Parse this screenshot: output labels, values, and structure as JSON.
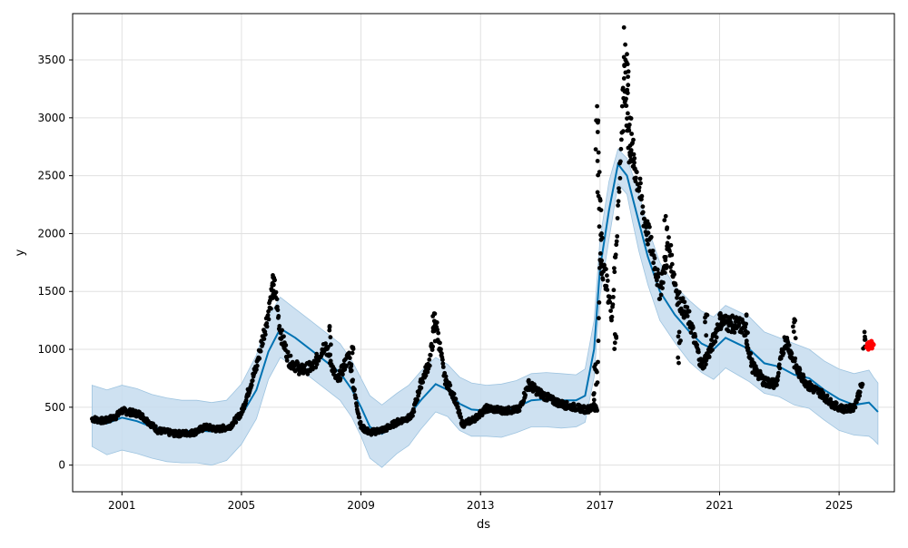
{
  "chart_data": {
    "type": "scatter",
    "title": "",
    "xlabel": "ds",
    "ylabel": "y",
    "xlim": [
      1999.35,
      2026.85
    ],
    "ylim": [
      -230,
      3900
    ],
    "grid": true,
    "x_ticks": [
      2001,
      2005,
      2009,
      2013,
      2017,
      2021,
      2025
    ],
    "x_tick_labels": [
      "2001",
      "2005",
      "2009",
      "2013",
      "2017",
      "2021",
      "2025"
    ],
    "y_ticks": [
      0,
      500,
      1000,
      1500,
      2000,
      2500,
      3000,
      3500
    ],
    "y_tick_labels": [
      "0",
      "500",
      "1000",
      "1500",
      "2000",
      "2500",
      "3000",
      "3500"
    ],
    "colors": {
      "observed": "#000000",
      "forecast_line": "#0072B2",
      "uncertainty_band": "#c6dcee",
      "uncertainty_edge": "#9ec4e0",
      "recent_points": "#ff0000",
      "grid": "#e0e0e0"
    },
    "series": [
      {
        "kind": "forecast",
        "x": [
          2000.0,
          2000.5,
          2001.0,
          2001.5,
          2002.0,
          2002.5,
          2003.0,
          2003.5,
          2004.0,
          2004.5,
          2005.0,
          2005.5,
          2005.9,
          2006.3,
          2006.8,
          2007.3,
          2007.8,
          2008.3,
          2008.7,
          2009.0,
          2009.3,
          2009.7,
          2010.2,
          2010.6,
          2011.0,
          2011.5,
          2011.9,
          2012.3,
          2012.7,
          2013.2,
          2013.7,
          2014.2,
          2014.7,
          2015.2,
          2015.7,
          2016.2,
          2016.5,
          2016.8,
          2017.0,
          2017.3,
          2017.6,
          2017.9,
          2018.1,
          2018.3,
          2018.6,
          2019.0,
          2019.5,
          2020.0,
          2020.4,
          2020.8,
          2021.2,
          2021.6,
          2022.0,
          2022.5,
          2023.0,
          2023.5,
          2024.0,
          2024.5,
          2025.0,
          2025.5,
          2026.0,
          2026.15,
          2026.3
        ],
        "y": [
          400,
          360,
          410,
          380,
          330,
          300,
          290,
          300,
          290,
          300,
          430,
          650,
          980,
          1180,
          1100,
          1000,
          900,
          800,
          650,
          500,
          330,
          270,
          360,
          430,
          560,
          700,
          650,
          530,
          480,
          470,
          470,
          500,
          560,
          570,
          560,
          560,
          600,
          1000,
          1700,
          2200,
          2600,
          2500,
          2300,
          2100,
          1800,
          1500,
          1300,
          1150,
          1050,
          1000,
          1100,
          1050,
          1000,
          880,
          850,
          780,
          750,
          650,
          570,
          520,
          540,
          500,
          460
        ]
      },
      {
        "kind": "uncertainty",
        "x": [
          2000.0,
          2000.5,
          2001.0,
          2001.5,
          2002.0,
          2002.5,
          2003.0,
          2003.5,
          2004.0,
          2004.5,
          2005.0,
          2005.5,
          2005.9,
          2006.3,
          2006.8,
          2007.3,
          2007.8,
          2008.3,
          2008.7,
          2009.0,
          2009.3,
          2009.7,
          2010.2,
          2010.6,
          2011.0,
          2011.5,
          2011.9,
          2012.3,
          2012.7,
          2013.2,
          2013.7,
          2014.2,
          2014.7,
          2015.2,
          2015.7,
          2016.2,
          2016.5,
          2016.8,
          2017.0,
          2017.3,
          2017.6,
          2017.9,
          2018.1,
          2018.3,
          2018.6,
          2019.0,
          2019.5,
          2020.0,
          2020.4,
          2020.8,
          2021.2,
          2021.6,
          2022.0,
          2022.5,
          2023.0,
          2023.5,
          2024.0,
          2024.5,
          2025.0,
          2025.5,
          2026.0,
          2026.15,
          2026.3
        ],
        "upper": [
          690,
          650,
          690,
          660,
          610,
          580,
          560,
          560,
          540,
          560,
          700,
          950,
          1280,
          1450,
          1350,
          1250,
          1150,
          1050,
          900,
          750,
          600,
          520,
          620,
          690,
          810,
          930,
          870,
          760,
          710,
          690,
          700,
          730,
          790,
          800,
          790,
          780,
          830,
          1250,
          1950,
          2450,
          2730,
          2650,
          2500,
          2350,
          2050,
          1750,
          1550,
          1420,
          1330,
          1280,
          1380,
          1330,
          1280,
          1150,
          1100,
          1050,
          1000,
          900,
          830,
          790,
          820,
          760,
          710
        ],
        "lower": [
          160,
          90,
          130,
          100,
          60,
          30,
          20,
          20,
          0,
          40,
          180,
          400,
          740,
          930,
          850,
          760,
          660,
          560,
          410,
          250,
          60,
          -20,
          100,
          170,
          310,
          460,
          420,
          300,
          250,
          250,
          240,
          280,
          330,
          330,
          320,
          330,
          370,
          760,
          1460,
          1950,
          2430,
          2340,
          2090,
          1850,
          1560,
          1250,
          1060,
          890,
          800,
          740,
          840,
          780,
          720,
          620,
          590,
          520,
          490,
          390,
          300,
          260,
          250,
          220,
          180
        ]
      },
      {
        "kind": "observed",
        "anchors": [
          [
            2000.0,
            400
          ],
          [
            2000.4,
            380
          ],
          [
            2000.8,
            420
          ],
          [
            2001.0,
            470
          ],
          [
            2001.6,
            440
          ],
          [
            2002.2,
            300
          ],
          [
            2002.8,
            270
          ],
          [
            2003.4,
            280
          ],
          [
            2003.8,
            330
          ],
          [
            2004.2,
            310
          ],
          [
            2004.6,
            330
          ],
          [
            2005.0,
            450
          ],
          [
            2005.5,
            850
          ],
          [
            2005.8,
            1200
          ],
          [
            2006.1,
            1560
          ],
          [
            2006.3,
            1150
          ],
          [
            2006.6,
            900
          ],
          [
            2007.0,
            820
          ],
          [
            2007.4,
            850
          ],
          [
            2007.8,
            1050
          ],
          [
            2008.2,
            720
          ],
          [
            2008.6,
            950
          ],
          [
            2008.8,
            600
          ],
          [
            2009.0,
            330
          ],
          [
            2009.3,
            280
          ],
          [
            2009.8,
            310
          ],
          [
            2010.2,
            370
          ],
          [
            2010.7,
            420
          ],
          [
            2011.0,
            700
          ],
          [
            2011.3,
            900
          ],
          [
            2011.5,
            1250
          ],
          [
            2011.8,
            750
          ],
          [
            2012.1,
            600
          ],
          [
            2012.4,
            350
          ],
          [
            2012.8,
            400
          ],
          [
            2013.2,
            490
          ],
          [
            2013.8,
            470
          ],
          [
            2014.3,
            480
          ],
          [
            2014.6,
            700
          ],
          [
            2015.0,
            620
          ],
          [
            2015.4,
            560
          ],
          [
            2015.8,
            520
          ],
          [
            2016.5,
            480
          ],
          [
            2016.9,
            500
          ],
          [
            2017.0,
            1800
          ],
          [
            2017.2,
            1600
          ],
          [
            2017.4,
            1300
          ],
          [
            2017.6,
            2200
          ],
          [
            2017.8,
            3300
          ],
          [
            2018.0,
            2800
          ],
          [
            2018.2,
            2550
          ],
          [
            2018.5,
            2100
          ],
          [
            2018.8,
            1800
          ],
          [
            2019.0,
            1500
          ],
          [
            2019.3,
            1900
          ],
          [
            2019.6,
            1450
          ],
          [
            2020.0,
            1250
          ],
          [
            2020.4,
            850
          ],
          [
            2020.7,
            1000
          ],
          [
            2021.0,
            1250
          ],
          [
            2021.4,
            1220
          ],
          [
            2021.8,
            1200
          ],
          [
            2022.1,
            850
          ],
          [
            2022.5,
            720
          ],
          [
            2022.9,
            700
          ],
          [
            2023.2,
            1100
          ],
          [
            2023.6,
            820
          ],
          [
            2024.0,
            680
          ],
          [
            2024.4,
            620
          ],
          [
            2024.8,
            520
          ],
          [
            2025.2,
            480
          ],
          [
            2025.5,
            500
          ],
          [
            2025.8,
            720
          ]
        ],
        "spikes": [
          [
            2016.9,
            3100
          ],
          [
            2016.95,
            2700
          ],
          [
            2017.0,
            2300
          ],
          [
            2017.05,
            2000
          ],
          [
            2017.8,
            3780
          ],
          [
            2017.85,
            3500
          ],
          [
            2017.9,
            3550
          ],
          [
            2017.95,
            3400
          ],
          [
            2018.0,
            3000
          ],
          [
            2018.15,
            2650
          ],
          [
            2019.2,
            2150
          ],
          [
            2019.65,
            1150
          ],
          [
            2020.55,
            1300
          ],
          [
            2021.9,
            1300
          ],
          [
            2023.5,
            1260
          ],
          [
            2025.85,
            1150
          ],
          [
            2011.45,
            1310
          ],
          [
            2006.05,
            1640
          ],
          [
            2007.95,
            1200
          ],
          [
            2008.7,
            1020
          ],
          [
            2016.85,
            870
          ],
          [
            2016.8,
            620
          ],
          [
            2017.5,
            1130
          ]
        ]
      },
      {
        "kind": "recent",
        "points": [
          [
            2025.92,
            1020
          ],
          [
            2025.95,
            1050
          ],
          [
            2025.98,
            1000
          ],
          [
            2026.0,
            1060
          ],
          [
            2026.02,
            1040
          ],
          [
            2026.05,
            1030
          ],
          [
            2026.08,
            1070
          ],
          [
            2026.1,
            1010
          ],
          [
            2026.12,
            1050
          ],
          [
            2026.15,
            1040
          ]
        ]
      }
    ]
  }
}
